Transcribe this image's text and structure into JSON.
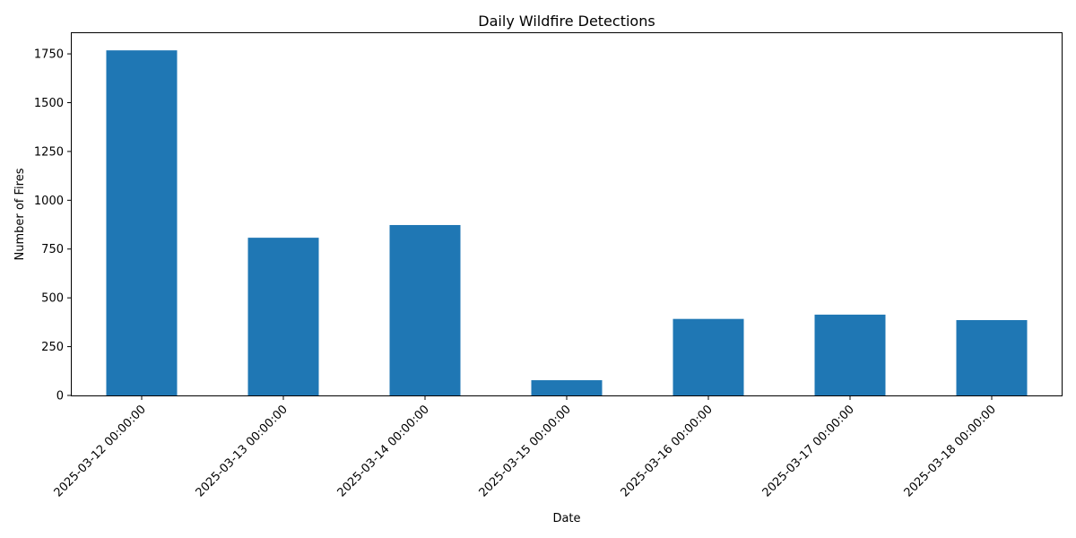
{
  "chart_data": {
    "type": "bar",
    "title": "Daily Wildfire Detections",
    "xlabel": "Date",
    "ylabel": "Number of Fires",
    "categories": [
      "2025-03-12 00:00:00",
      "2025-03-13 00:00:00",
      "2025-03-14 00:00:00",
      "2025-03-15 00:00:00",
      "2025-03-16 00:00:00",
      "2025-03-17 00:00:00",
      "2025-03-18 00:00:00"
    ],
    "values": [
      1768,
      808,
      873,
      78,
      392,
      414,
      386
    ],
    "ylim": [
      0,
      1856
    ],
    "yticks": [
      0,
      250,
      500,
      750,
      1000,
      1250,
      1500,
      1750
    ],
    "bar_color": "#1f77b4",
    "grid": false,
    "legend": "none"
  }
}
